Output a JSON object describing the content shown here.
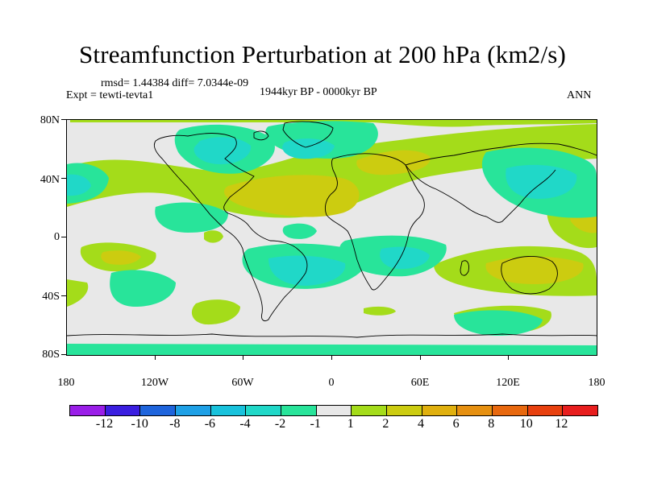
{
  "title": "Streamfunction Perturbation at 200 hPa (km2/s)",
  "stats": "rmsd= 1.44384  diff= 7.0344e-09",
  "experiment": "Expt = tewti-tevta1",
  "period": "1944kyr BP - 0000kyr BP",
  "season": "ANN",
  "lat_labels": [
    "80N",
    "40N",
    "0",
    "40S",
    "80S"
  ],
  "lon_labels": [
    "180",
    "120W",
    "60W",
    "0",
    "60E",
    "120E",
    "180"
  ],
  "colorbar": {
    "colors": [
      "#9a1ee8",
      "#3a1ee0",
      "#1e64dc",
      "#1ea0e6",
      "#18c2dc",
      "#20d8c8",
      "#28e49a",
      "#e8e8e8",
      "#a4dc1a",
      "#cccc10",
      "#e0b00e",
      "#e69010",
      "#e8680e",
      "#e8400e",
      "#e81e1e"
    ],
    "labels": [
      "-12",
      "-10",
      "-8",
      "-6",
      "-4",
      "-2",
      "-1",
      "1",
      "2",
      "4",
      "6",
      "8",
      "10",
      "12"
    ]
  },
  "field_colors": {
    "neg1": "#28e49a",
    "neg2": "#20d8c8",
    "neg4": "#18c2dc",
    "pos2": "#a4dc1a",
    "pos4": "#cccc10",
    "land": "#000000"
  }
}
